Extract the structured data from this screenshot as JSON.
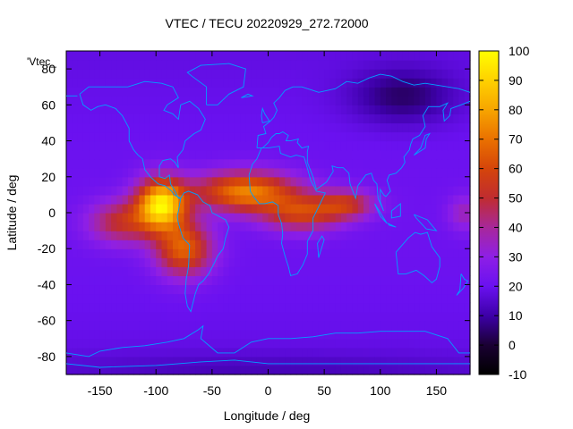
{
  "chart_data": {
    "type": "heatmap",
    "title": "VTEC / TECU 20220929_272.72000",
    "xlabel": "Longitude / deg",
    "ylabel": "Latitude / deg",
    "xlim": [
      -180,
      180
    ],
    "ylim": [
      -90,
      90
    ],
    "xticks": [
      -150,
      -100,
      -50,
      0,
      50,
      100,
      150
    ],
    "yticks": [
      -80,
      -60,
      -40,
      -20,
      0,
      20,
      40,
      60,
      80
    ],
    "series_key": "'Vtec_",
    "colorbar": {
      "range": [
        -10,
        100
      ],
      "ticks": [
        -10,
        0,
        10,
        20,
        30,
        40,
        50,
        60,
        70,
        80,
        90,
        100
      ],
      "palette": [
        "#000000",
        "#1a0033",
        "#3d00a8",
        "#6a11f0",
        "#8e1fe6",
        "#a8289a",
        "#c02c30",
        "#d5450a",
        "#ea7100",
        "#f7a500",
        "#ffd100",
        "#ffff00"
      ]
    },
    "peaks": [
      {
        "lon": -95,
        "lat": 5,
        "vtec": 90
      },
      {
        "lon": -20,
        "lat": 15,
        "vtec": 70
      },
      {
        "lon": 60,
        "lat": 0,
        "vtec": 55
      }
    ],
    "minimum": {
      "lon": 120,
      "lat": 65,
      "vtec": 5
    },
    "background_vtec": 18,
    "overlay": "coastlines",
    "coast_color": "#00a0ff"
  }
}
